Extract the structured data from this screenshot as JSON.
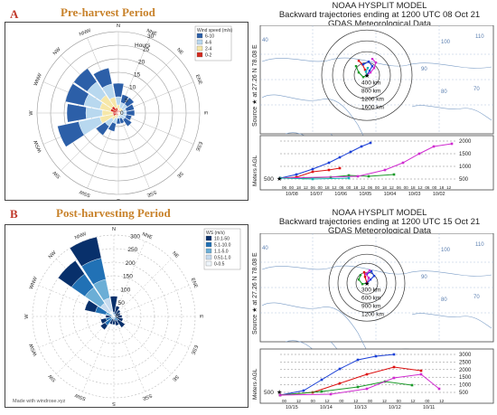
{
  "panelA": {
    "label": "A",
    "title": "Pre-harvest Period",
    "windrose": {
      "legend_title": "Wind speed (m/s)",
      "legend": [
        {
          "label": "6-10",
          "color": "#2c5fa8"
        },
        {
          "label": "4-6",
          "color": "#b8d8ef"
        },
        {
          "label": "2-4",
          "color": "#f6e7a8"
        },
        {
          "label": "0-2",
          "color": "#d42a1f"
        }
      ],
      "radial_unit": "Hours",
      "radial_ticks": [
        "30",
        "25",
        "20",
        "15",
        "10",
        "5",
        "0"
      ],
      "directions": [
        "N",
        "NNE",
        "NE",
        "ENE",
        "E",
        "ESE",
        "SE",
        "SSE",
        "S",
        "SSW",
        "SW",
        "WSW",
        "W",
        "WNW",
        "NW",
        "NNW"
      ],
      "bars": [
        [
          5,
          3,
          2,
          1
        ],
        [
          3,
          2,
          1,
          1
        ],
        [
          3,
          2,
          1,
          1
        ],
        [
          3,
          2,
          1,
          0
        ],
        [
          3,
          2,
          1,
          0
        ],
        [
          2,
          2,
          1,
          0
        ],
        [
          3,
          2,
          1,
          0
        ],
        [
          2,
          1,
          1,
          0
        ],
        [
          2,
          1,
          1,
          0
        ],
        [
          3,
          2,
          1,
          1
        ],
        [
          4,
          3,
          2,
          1
        ],
        [
          8,
          8,
          5,
          2
        ],
        [
          7,
          6,
          4,
          2
        ],
        [
          7,
          6,
          4,
          3
        ],
        [
          6,
          6,
          5,
          3
        ],
        [
          6,
          5,
          4,
          2
        ]
      ]
    },
    "hysplit": {
      "title_line1": "NOAA HYSPLIT MODEL",
      "title_line2": "Backward trajectories ending at 1200 UTC 08 Oct 21",
      "title_line3": "GDAS Meteorological Data",
      "source_label": "Source ★ at 27.26 N 78.08 E",
      "ring_labels": [
        "400 km",
        "800 km",
        "1200 km",
        "1600 km"
      ],
      "map_numbers": [
        "40",
        "110",
        "100",
        "90",
        "80",
        "70"
      ],
      "axis_label": "Meters AGL",
      "y_ticks": [
        "2000",
        "1500",
        "1000",
        "500"
      ],
      "start_label": "500",
      "x_ticks": [
        "06",
        "00",
        "18",
        "12",
        "06",
        "00",
        "18",
        "12",
        "06",
        "00",
        "18",
        "12",
        "06",
        "00",
        "18",
        "12",
        "06",
        "00",
        "18",
        "12",
        "06",
        "00",
        "18",
        "12"
      ],
      "date_labels": [
        "10/08",
        "10/07",
        "10/06",
        "10/05",
        "10/04",
        "10/03",
        "10/02"
      ]
    }
  },
  "panelB": {
    "label": "B",
    "title": "Post-harvesting Period",
    "windrose": {
      "legend_title": "WS (m/s)",
      "legend": [
        {
          "label": "10.1-50",
          "color": "#08306b"
        },
        {
          "label": "5.1-10.0",
          "color": "#2171b5"
        },
        {
          "label": "1.1-5.0",
          "color": "#6baed6"
        },
        {
          "label": "0.51-1.0",
          "color": "#c6dbef"
        },
        {
          "label": "0-0.5",
          "color": "#eef5fb"
        }
      ],
      "radial_ticks": [
        "300",
        "250",
        "200",
        "150",
        "100",
        "50",
        "0"
      ],
      "directions": [
        "N",
        "NNE",
        "NE",
        "ENE",
        "E",
        "ESE",
        "SE",
        "SSE",
        "S",
        "SSW",
        "SW",
        "WSW",
        "W",
        "WNW",
        "NW",
        "NNW"
      ],
      "bars": [
        [
          60,
          15,
          0,
          0,
          0
        ],
        [
          30,
          10,
          0,
          0,
          0
        ],
        [
          20,
          10,
          0,
          0,
          0
        ],
        [
          20,
          5,
          0,
          0,
          0
        ],
        [
          20,
          10,
          0,
          0,
          0
        ],
        [
          20,
          15,
          0,
          0,
          0
        ],
        [
          30,
          20,
          0,
          0,
          0
        ],
        [
          20,
          15,
          0,
          0,
          0
        ],
        [
          20,
          10,
          0,
          0,
          0
        ],
        [
          20,
          10,
          0,
          0,
          0
        ],
        [
          20,
          30,
          10,
          0,
          0
        ],
        [
          20,
          20,
          10,
          0,
          0
        ],
        [
          20,
          10,
          0,
          0,
          0
        ],
        [
          40,
          40,
          30,
          0,
          0
        ],
        [
          60,
          60,
          70,
          40,
          20
        ],
        [
          80,
          80,
          70,
          50,
          20
        ]
      ],
      "credit": "Made with windrose.xyz"
    },
    "hysplit": {
      "title_line1": "NOAA HYSPLIT MODEL",
      "title_line2": "Backward trajectories ending at 1200 UTC 15 Oct 21",
      "title_line3": "GDAS Meteorological Data",
      "source_label": "Source ★ at 27.26 N 78.08 E",
      "ring_labels": [
        "300 km",
        "600 km",
        "900 km",
        "1200 km"
      ],
      "map_numbers": [
        "40",
        "110",
        "100",
        "90",
        "80",
        "70"
      ],
      "axis_label": "Meters AGL",
      "y_ticks": [
        "3000",
        "2500",
        "2000",
        "1500",
        "1000",
        "500"
      ],
      "start_label": "500",
      "x_ticks": [
        "00",
        "12",
        "00",
        "12",
        "00",
        "12",
        "00",
        "12",
        "00",
        "12",
        "00",
        "12"
      ],
      "date_labels": [
        "10/15",
        "10/14",
        "10/13",
        "10/12",
        "10/11"
      ]
    }
  }
}
